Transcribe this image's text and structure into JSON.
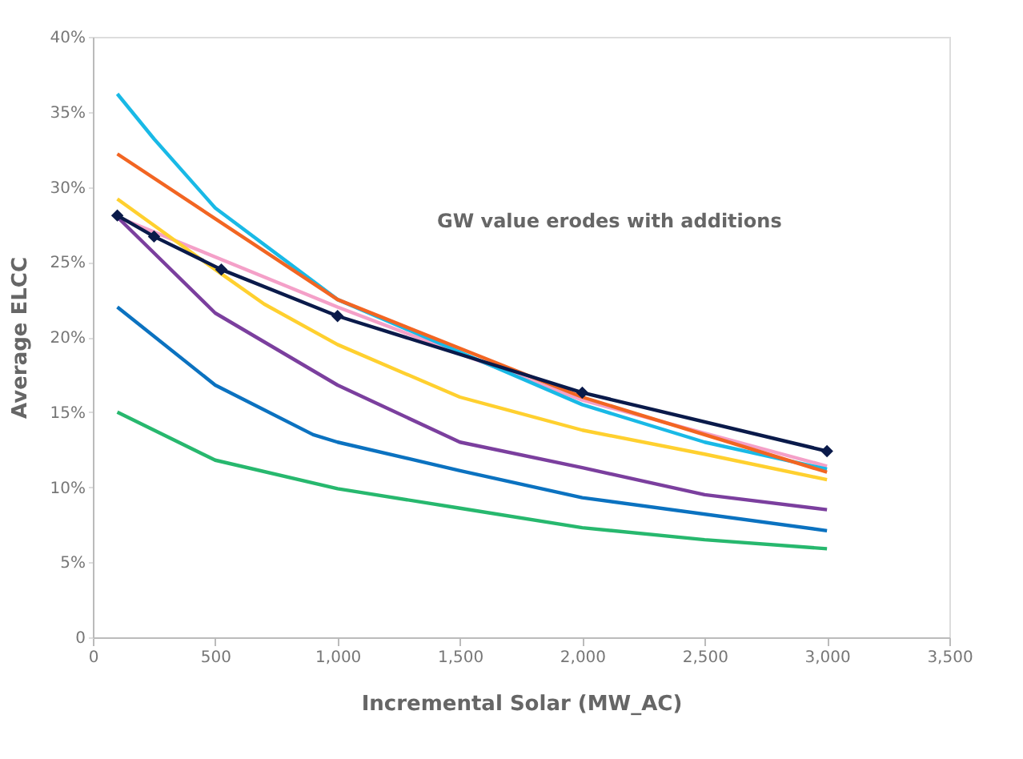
{
  "chart_data": {
    "type": "line",
    "xlabel": "Incremental Solar (MW_AC)",
    "ylabel": "Average ELCC",
    "annotations": [
      "GW value erodes with additions"
    ],
    "xlim": [
      0,
      3500
    ],
    "xticks": [
      0,
      500,
      {
        "value": 1000,
        "label": "1,000"
      },
      {
        "value": 1500,
        "label": "1,500"
      },
      {
        "value": 2000,
        "label": "2,000"
      },
      {
        "value": 2500,
        "label": "2,500"
      },
      {
        "value": 3000,
        "label": "3,000"
      },
      {
        "value": 3500,
        "label": "3,500"
      }
    ],
    "ylim": [
      0,
      40
    ],
    "yticks": [
      0,
      {
        "value": 5,
        "label": "5%"
      },
      {
        "value": 10,
        "label": "10%"
      },
      {
        "value": 15,
        "label": "15%"
      },
      {
        "value": 20,
        "label": "20%"
      },
      {
        "value": 25,
        "label": "25%"
      },
      {
        "value": 30,
        "label": "30%"
      },
      {
        "value": 35,
        "label": "35%"
      },
      {
        "value": 40,
        "label": "40%"
      }
    ],
    "grid": false,
    "legend": false,
    "line_style": "solid",
    "series": [
      {
        "color": "#f4a0c8",
        "marker": "none",
        "x": [
          100,
          1000,
          2000,
          3000
        ],
        "values": [
          28.0,
          22.0,
          15.8,
          11.4
        ]
      },
      {
        "color": "#19b9e6",
        "marker": "none",
        "x": [
          100,
          250,
          500,
          1000,
          1500,
          2000,
          2500,
          3000
        ],
        "values": [
          36.2,
          33.2,
          28.6,
          22.5,
          19.0,
          15.5,
          13.0,
          11.2
        ]
      },
      {
        "color": "#f26522",
        "marker": "none",
        "x": [
          100,
          1000,
          2000,
          3000
        ],
        "values": [
          32.2,
          22.5,
          16.0,
          11.0
        ]
      },
      {
        "color": "#ffd02f",
        "marker": "none",
        "x": [
          100,
          500,
          700,
          1000,
          1500,
          2000,
          2500,
          3000
        ],
        "values": [
          29.2,
          24.5,
          22.2,
          19.5,
          16.0,
          13.8,
          12.2,
          10.5
        ]
      },
      {
        "color": "#7b3f9e",
        "marker": "none",
        "x": [
          100,
          500,
          1000,
          1500,
          2000,
          2500,
          3000
        ],
        "values": [
          28.0,
          21.6,
          16.8,
          13.0,
          11.3,
          9.5,
          8.5
        ]
      },
      {
        "color": "#0b72c0",
        "marker": "none",
        "x": [
          100,
          500,
          900,
          1000,
          1500,
          2000,
          3000
        ],
        "values": [
          22.0,
          16.8,
          13.5,
          13.0,
          11.1,
          9.3,
          7.1
        ]
      },
      {
        "color": "#27b86e",
        "marker": "none",
        "x": [
          100,
          500,
          1000,
          1500,
          2000,
          2500,
          3000
        ],
        "values": [
          15.0,
          11.8,
          9.9,
          8.6,
          7.3,
          6.5,
          5.9
        ]
      },
      {
        "color": "#0a1a4a",
        "marker": "diamond",
        "x": [
          100,
          250,
          525,
          1000,
          2000,
          3000
        ],
        "values": [
          28.1,
          26.7,
          24.5,
          21.4,
          16.3,
          12.4
        ]
      }
    ]
  }
}
